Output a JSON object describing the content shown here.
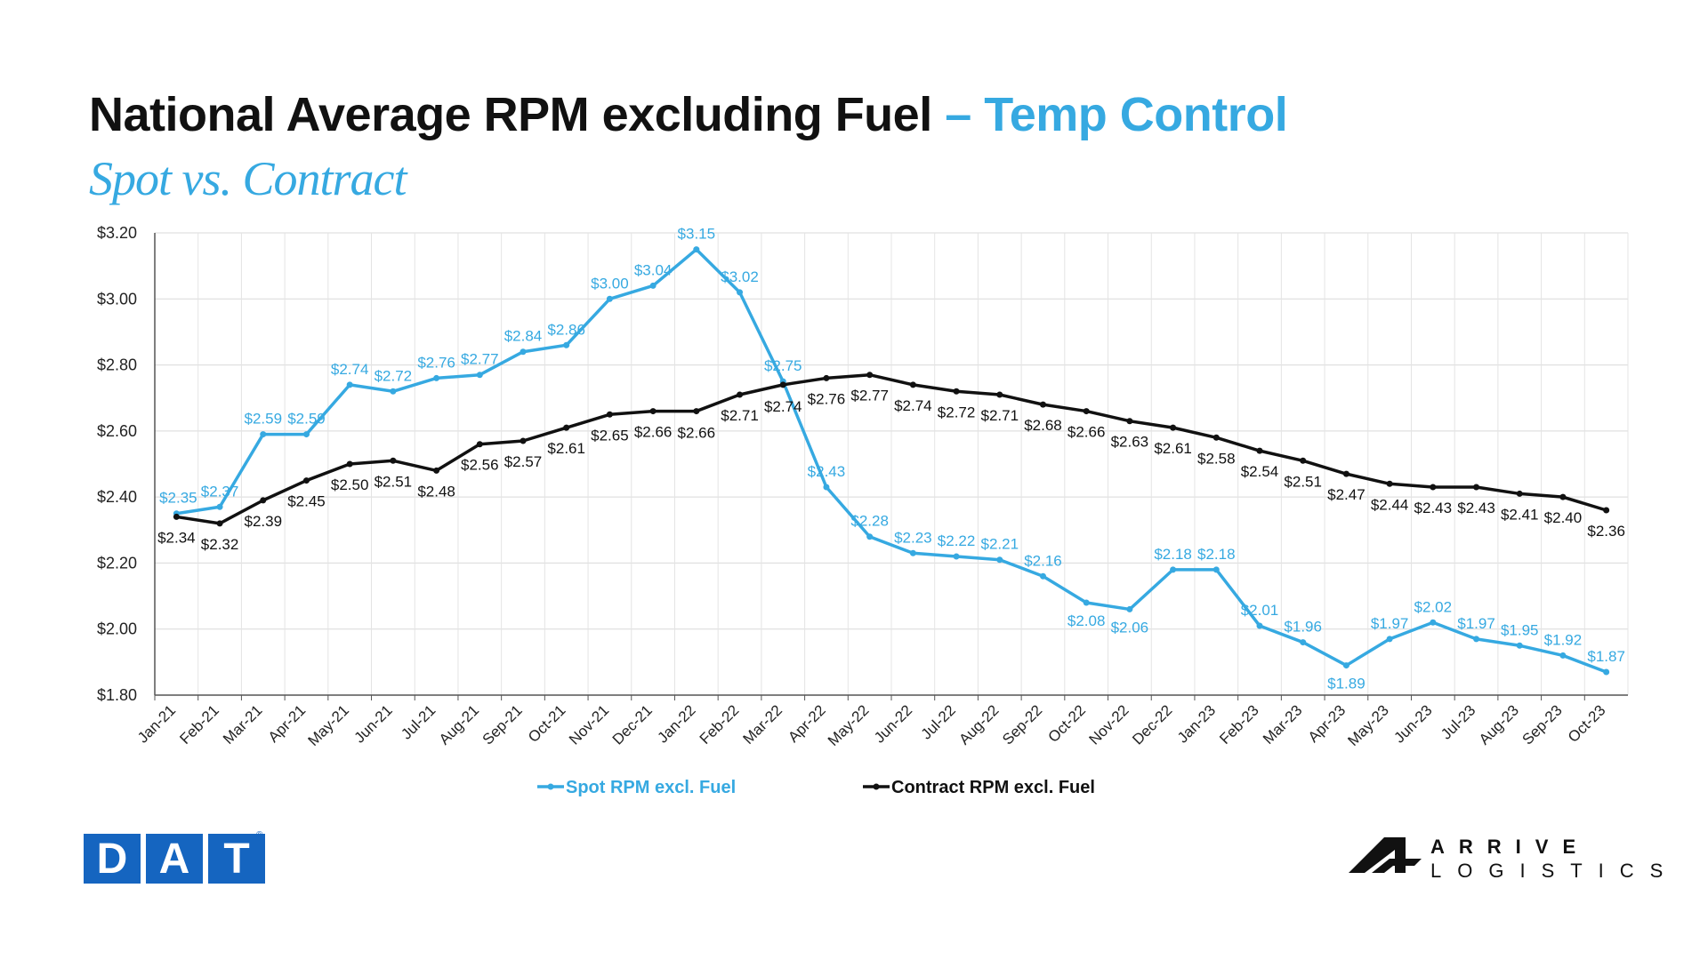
{
  "title": {
    "main": "National Average RPM excluding Fuel",
    "accent": "– Temp Control"
  },
  "subtitle": "Spot vs. Contract",
  "brand": {
    "left_logo": "DAT",
    "right_logo_line1": "ARRIVE",
    "right_logo_line2": "LOGISTICS"
  },
  "colors": {
    "spot": "#36a9e1",
    "contract": "#111111",
    "logo_blue": "#1565c0"
  },
  "chart_data": {
    "type": "line",
    "title": "National Average RPM excluding Fuel – Temp Control",
    "subtitle": "Spot vs. Contract",
    "xlabel": "",
    "ylabel": "",
    "ylim": [
      1.8,
      3.2
    ],
    "yticks": [
      1.8,
      2.0,
      2.2,
      2.4,
      2.6,
      2.8,
      3.0,
      3.2
    ],
    "ytick_labels": [
      "$1.80",
      "$2.00",
      "$2.20",
      "$2.40",
      "$2.60",
      "$2.80",
      "$3.00",
      "$3.20"
    ],
    "grid": true,
    "legend_position": "bottom",
    "categories": [
      "Jan-21",
      "Feb-21",
      "Mar-21",
      "Apr-21",
      "May-21",
      "Jun-21",
      "Jul-21",
      "Aug-21",
      "Sep-21",
      "Oct-21",
      "Nov-21",
      "Dec-21",
      "Jan-22",
      "Feb-22",
      "Mar-22",
      "Apr-22",
      "May-22",
      "Jun-22",
      "Jul-22",
      "Aug-22",
      "Sep-22",
      "Oct-22",
      "Nov-22",
      "Dec-22",
      "Jan-23",
      "Feb-23",
      "Mar-23",
      "Apr-23",
      "May-23",
      "Jun-23",
      "Jul-23",
      "Aug-23",
      "Sep-23",
      "Oct-23"
    ],
    "series": [
      {
        "name": "Spot RPM excl. Fuel",
        "color": "#36a9e1",
        "values": [
          2.35,
          2.37,
          2.59,
          2.59,
          2.74,
          2.72,
          2.76,
          2.77,
          2.84,
          2.86,
          3.0,
          3.04,
          3.15,
          3.02,
          2.75,
          2.43,
          2.28,
          2.23,
          2.22,
          2.21,
          2.16,
          2.08,
          2.06,
          2.18,
          2.18,
          2.01,
          1.96,
          1.89,
          1.97,
          2.02,
          1.97,
          1.95,
          1.92,
          1.87
        ],
        "labels": [
          "$2.35",
          "$2.37",
          "$2.59",
          "$2.59",
          "$2.74",
          "$2.72",
          "$2.76",
          "$2.77",
          "$2.84",
          "$2.86",
          "$3.00",
          "$3.04",
          "$3.15",
          "$3.02",
          "$2.75",
          "$2.43",
          "$2.28",
          "$2.23",
          "$2.22",
          "$2.21",
          "$2.16",
          "$2.08",
          "$2.06",
          "$2.18",
          "$2.18",
          "$2.01",
          "$1.96",
          "$1.89",
          "$1.97",
          "$2.02",
          "$1.97",
          "$1.95",
          "$1.92",
          "$1.87"
        ]
      },
      {
        "name": "Contract RPM excl. Fuel",
        "color": "#111111",
        "values": [
          2.34,
          2.32,
          2.39,
          2.45,
          2.5,
          2.51,
          2.48,
          2.56,
          2.57,
          2.61,
          2.65,
          2.66,
          2.66,
          2.71,
          2.74,
          2.76,
          2.77,
          2.74,
          2.72,
          2.71,
          2.68,
          2.66,
          2.63,
          2.61,
          2.58,
          2.54,
          2.51,
          2.47,
          2.44,
          2.43,
          2.43,
          2.41,
          2.4,
          2.36
        ],
        "labels": [
          "$2.34",
          "$2.32",
          "$2.39",
          "$2.45",
          "$2.50",
          "$2.51",
          "$2.48",
          "$2.56",
          "$2.57",
          "$2.61",
          "$2.65",
          "$2.66",
          "$2.66",
          "$2.71",
          "$2.74",
          "$2.76",
          "$2.77",
          "$2.74",
          "$2.72",
          "$2.71",
          "$2.68",
          "$2.66",
          "$2.63",
          "$2.61",
          "$2.58",
          "$2.54",
          "$2.51",
          "$2.47",
          "$2.44",
          "$2.43",
          "$2.43",
          "$2.41",
          "$2.40",
          "$2.36"
        ]
      }
    ]
  }
}
